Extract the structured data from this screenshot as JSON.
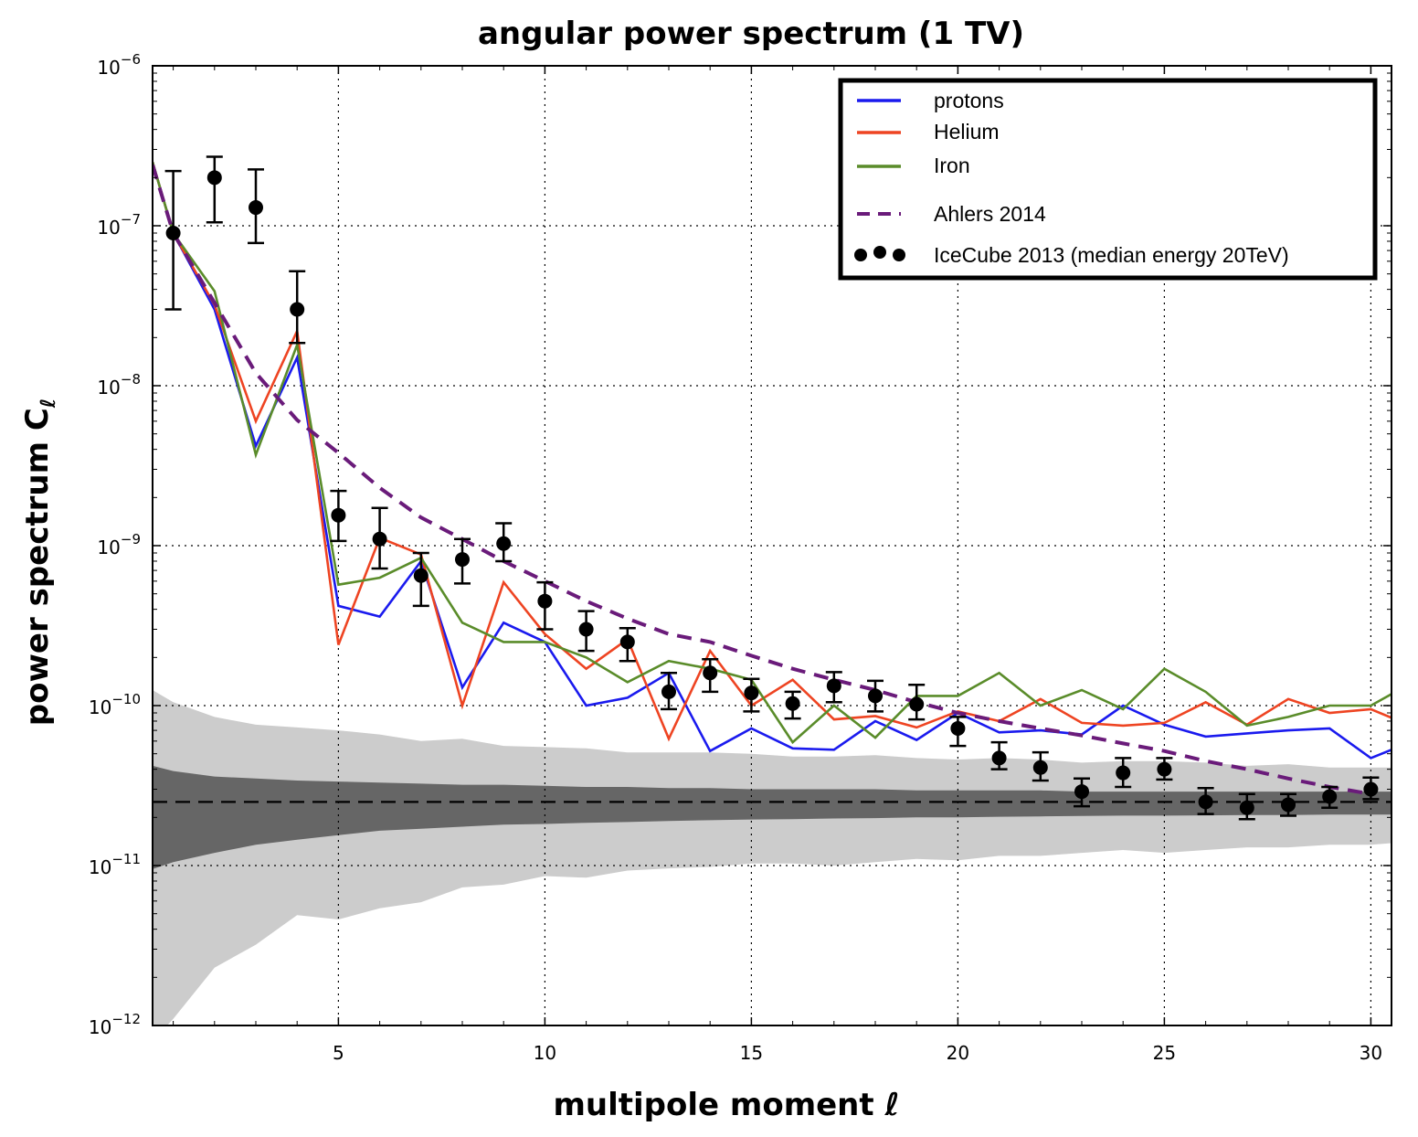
{
  "chart_data": {
    "type": "line",
    "title": "angular power spectrum (1 TV)",
    "xlabel": "multipole moment ℓ",
    "ylabel": "power spectrum C",
    "ylabel_subscript": "ℓ",
    "xlim": [
      0.5,
      30.5
    ],
    "ylim": [
      1e-12,
      1e-06
    ],
    "yscale": "log",
    "grid": true,
    "legend_position": "top-right",
    "x_ticks": [
      5,
      10,
      15,
      20,
      25,
      30
    ],
    "y_ticks": [
      {
        "exp": -12,
        "label": "10",
        "sup": "−12"
      },
      {
        "exp": -11,
        "label": "10",
        "sup": "−11"
      },
      {
        "exp": -10,
        "label": "10",
        "sup": "−10"
      },
      {
        "exp": -9,
        "label": "10",
        "sup": "−9"
      },
      {
        "exp": -8,
        "label": "10",
        "sup": "−8"
      },
      {
        "exp": -7,
        "label": "10",
        "sup": "−7"
      },
      {
        "exp": -6,
        "label": "10",
        "sup": "−6"
      }
    ],
    "colors": {
      "protons": "#1a1aee",
      "helium": "#ee4422",
      "iron": "#5a8c2a",
      "ahlers": "#6a1b7a",
      "band_outer": "#cccccc",
      "band_inner": "#666666"
    },
    "series": [
      {
        "key": "protons",
        "name": "protons",
        "style": "solid",
        "x": [
          0.5,
          1,
          2,
          3,
          4,
          5,
          6,
          7,
          8,
          9,
          10,
          11,
          12,
          13,
          14,
          15,
          16,
          17,
          18,
          19,
          20,
          21,
          22,
          23,
          24,
          25,
          26,
          27,
          28,
          29,
          30,
          30.5
        ],
        "y": [
          2.5e-07,
          9e-08,
          3e-08,
          4.2e-09,
          1.5e-08,
          4.2e-10,
          3.6e-10,
          8e-10,
          1.3e-10,
          3.3e-10,
          2.5e-10,
          1e-10,
          1.12e-10,
          1.6e-10,
          5.2e-11,
          7.2e-11,
          5.4e-11,
          5.3e-11,
          8e-11,
          6.1e-11,
          9e-11,
          6.8e-11,
          7e-11,
          6.6e-11,
          1e-10,
          7.6e-11,
          6.4e-11,
          6.7e-11,
          7e-11,
          7.2e-11,
          4.7e-11,
          5.3e-11
        ]
      },
      {
        "key": "helium",
        "name": "Helium",
        "style": "solid",
        "x": [
          0.5,
          1,
          2,
          3,
          4,
          5,
          6,
          7,
          8,
          9,
          10,
          11,
          12,
          13,
          14,
          15,
          16,
          17,
          18,
          19,
          20,
          21,
          22,
          23,
          24,
          25,
          26,
          27,
          28,
          29,
          30,
          30.5
        ],
        "y": [
          2.5e-07,
          9e-08,
          3.2e-08,
          6e-09,
          2.2e-08,
          2.4e-10,
          1.12e-09,
          8.8e-10,
          1e-10,
          5.9e-10,
          2.8e-10,
          1.7e-10,
          2.6e-10,
          6.2e-11,
          2.2e-10,
          1e-10,
          1.45e-10,
          8.2e-11,
          8.6e-11,
          7.3e-11,
          9.2e-11,
          8e-11,
          1.1e-10,
          7.8e-11,
          7.5e-11,
          7.8e-11,
          1.05e-10,
          7.6e-11,
          1.1e-10,
          9e-11,
          9.5e-11,
          8.4e-11
        ]
      },
      {
        "key": "iron",
        "name": "Iron",
        "style": "solid",
        "x": [
          0.5,
          1,
          2,
          3,
          4,
          5,
          6,
          7,
          8,
          9,
          10,
          11,
          12,
          13,
          14,
          15,
          16,
          17,
          18,
          19,
          20,
          21,
          22,
          23,
          24,
          25,
          26,
          27,
          28,
          29,
          30,
          30.5
        ],
        "y": [
          2.5e-07,
          9e-08,
          3.9e-08,
          3.7e-09,
          1.8e-08,
          5.7e-10,
          6.3e-10,
          8.4e-10,
          3.3e-10,
          2.5e-10,
          2.5e-10,
          2e-10,
          1.4e-10,
          1.9e-10,
          1.7e-10,
          1.45e-10,
          5.9e-11,
          1e-10,
          6.3e-11,
          1.15e-10,
          1.15e-10,
          1.6e-10,
          1e-10,
          1.25e-10,
          9.5e-11,
          1.7e-10,
          1.22e-10,
          7.5e-11,
          8.5e-11,
          1e-10,
          1e-10,
          1.18e-10
        ]
      },
      {
        "key": "ahlers",
        "name": "Ahlers 2014",
        "style": "dashed",
        "x": [
          0.5,
          1,
          2,
          3,
          4,
          5,
          6,
          7,
          8,
          9,
          10,
          11,
          12,
          13,
          14,
          15,
          16,
          17,
          18,
          19,
          20,
          21,
          22,
          23,
          24,
          25,
          26,
          27,
          28,
          29,
          30
        ],
        "y": [
          2.4e-07,
          9e-08,
          3.3e-08,
          1.2e-08,
          6.1e-09,
          3.8e-09,
          2.3e-09,
          1.5e-09,
          1.1e-09,
          8e-10,
          6e-10,
          4.5e-10,
          3.5e-10,
          2.8e-10,
          2.5e-10,
          2.05e-10,
          1.7e-10,
          1.45e-10,
          1.25e-10,
          1.05e-10,
          9e-11,
          8e-11,
          7.2e-11,
          6.5e-11,
          5.8e-11,
          5.2e-11,
          4.5e-11,
          4e-11,
          3.5e-11,
          3.1e-11,
          2.8e-11
        ]
      }
    ],
    "icecube": {
      "name": "IceCube 2013 (median energy 20TeV)",
      "x": [
        1,
        2,
        3,
        4,
        5,
        6,
        7,
        8,
        9,
        10,
        11,
        12,
        13,
        14,
        15,
        16,
        17,
        18,
        19,
        20,
        21,
        22,
        23,
        24,
        25,
        26,
        27,
        28,
        29,
        30
      ],
      "y": [
        9e-08,
        2e-07,
        1.3e-07,
        3e-08,
        1.55e-09,
        1.1e-09,
        6.5e-10,
        8.2e-10,
        1.03e-09,
        4.5e-10,
        3e-10,
        2.5e-10,
        1.22e-10,
        1.6e-10,
        1.2e-10,
        1.03e-10,
        1.33e-10,
        1.15e-10,
        1.02e-10,
        7.2e-11,
        4.7e-11,
        4.1e-11,
        2.9e-11,
        3.8e-11,
        4e-11,
        2.5e-11,
        2.3e-11,
        2.4e-11,
        2.7e-11,
        3e-11
      ],
      "lo": [
        3e-08,
        1.05e-07,
        7.8e-08,
        1.85e-08,
        1.07e-09,
        7.2e-10,
        4.2e-10,
        5.8e-10,
        8e-10,
        3e-10,
        2.2e-10,
        1.9e-10,
        9.5e-11,
        1.22e-10,
        9.2e-11,
        8.3e-11,
        1.05e-10,
        9.2e-11,
        8.2e-11,
        5.6e-11,
        4e-11,
        3.4e-11,
        2.35e-11,
        3.1e-11,
        3.45e-11,
        2.1e-11,
        1.95e-11,
        2.05e-11,
        2.3e-11,
        2.6e-11
      ],
      "hi": [
        2.2e-07,
        2.7e-07,
        2.25e-07,
        5.2e-08,
        2.2e-09,
        1.72e-09,
        9e-10,
        1.1e-09,
        1.38e-09,
        5.9e-10,
        3.9e-10,
        3.05e-10,
        1.6e-10,
        1.95e-10,
        1.47e-10,
        1.22e-10,
        1.62e-10,
        1.43e-10,
        1.35e-10,
        8.5e-11,
        5.9e-11,
        5.1e-11,
        3.5e-11,
        4.7e-11,
        4.7e-11,
        3.05e-11,
        2.8e-11,
        2.8e-11,
        3.1e-11,
        3.55e-11
      ]
    },
    "noise_level": 2.5e-11,
    "bands": {
      "x": [
        0.5,
        1,
        2,
        3,
        4,
        5,
        6,
        7,
        8,
        9,
        10,
        11,
        12,
        13,
        14,
        15,
        16,
        17,
        18,
        19,
        20,
        21,
        22,
        23,
        24,
        25,
        26,
        27,
        28,
        29,
        30,
        30.5
      ],
      "outer_hi": [
        1.25e-10,
        1.05e-10,
        8.5e-11,
        7.6e-11,
        7.3e-11,
        7e-11,
        6.6e-11,
        6e-11,
        6.2e-11,
        5.6e-11,
        5.5e-11,
        5.4e-11,
        5.1e-11,
        5.1e-11,
        5.1e-11,
        5e-11,
        4.8e-11,
        4.8e-11,
        4.9e-11,
        4.7e-11,
        4.6e-11,
        4.7e-11,
        4.6e-11,
        4.4e-11,
        4.5e-11,
        4.5e-11,
        4.4e-11,
        4.2e-11,
        4.3e-11,
        4.1e-11,
        4.1e-11,
        4.1e-11
      ],
      "inner_hi": [
        4.2e-11,
        3.9e-11,
        3.6e-11,
        3.5e-11,
        3.4e-11,
        3.35e-11,
        3.3e-11,
        3.25e-11,
        3.2e-11,
        3.2e-11,
        3.15e-11,
        3.1e-11,
        3.1e-11,
        3.05e-11,
        3.05e-11,
        3e-11,
        3e-11,
        3e-11,
        3e-11,
        2.95e-11,
        2.95e-11,
        2.95e-11,
        2.95e-11,
        2.9e-11,
        2.9e-11,
        2.9e-11,
        2.9e-11,
        2.9e-11,
        2.9e-11,
        2.9e-11,
        2.9e-11,
        2.9e-11
      ],
      "inner_lo": [
        9.5e-12,
        1.05e-11,
        1.2e-11,
        1.35e-11,
        1.45e-11,
        1.55e-11,
        1.65e-11,
        1.7e-11,
        1.75e-11,
        1.8e-11,
        1.82e-11,
        1.85e-11,
        1.87e-11,
        1.9e-11,
        1.92e-11,
        1.94e-11,
        1.95e-11,
        1.97e-11,
        1.98e-11,
        2e-11,
        2e-11,
        2.02e-11,
        2.03e-11,
        2.04e-11,
        2.05e-11,
        2.05e-11,
        2.06e-11,
        2.07e-11,
        2.07e-11,
        2.08e-11,
        2.08e-11,
        2.08e-11
      ],
      "outer_lo": [
        8e-13,
        1.1e-12,
        2.3e-12,
        3.2e-12,
        4.9e-12,
        4.6e-12,
        5.4e-12,
        5.9e-12,
        7.3e-12,
        7.6e-12,
        8.6e-12,
        8.4e-12,
        9.3e-12,
        9.6e-12,
        9.8e-12,
        1.03e-11,
        1.03e-11,
        1e-11,
        1.05e-11,
        1.1e-11,
        1.08e-11,
        1.15e-11,
        1.15e-11,
        1.2e-11,
        1.25e-11,
        1.2e-11,
        1.25e-11,
        1.3e-11,
        1.3e-11,
        1.35e-11,
        1.35e-11,
        1.38e-11
      ]
    }
  }
}
